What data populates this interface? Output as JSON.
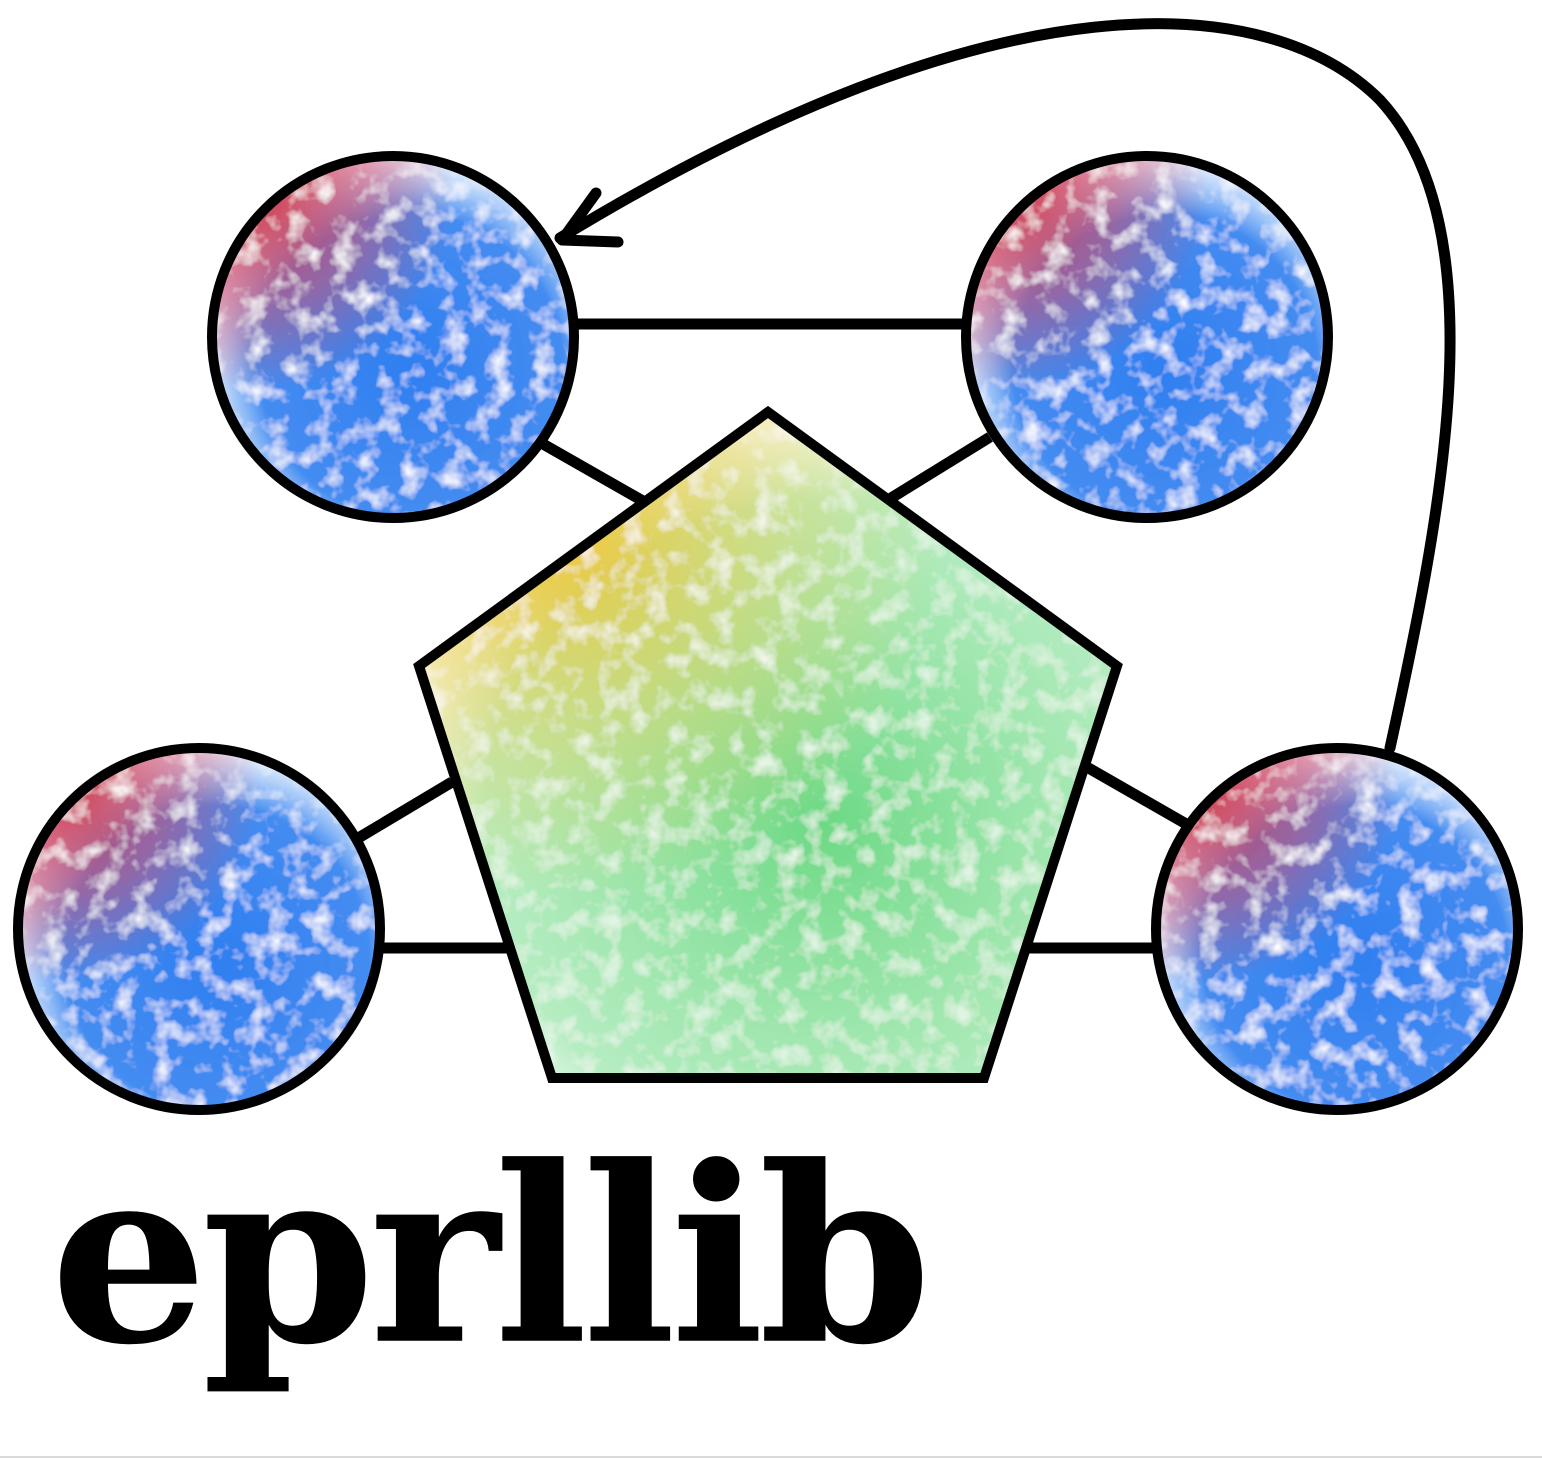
{
  "logo": {
    "wordmark": "eprllib"
  },
  "colors": {
    "stroke": "#000000",
    "background": "#ffffff",
    "agent_blue": "#2f7ff0",
    "agent_red": "#d8334f",
    "environment_green": "#3ccc5c",
    "environment_yellow": "#f2c21f"
  },
  "diagram": {
    "nodes": [
      {
        "role": "agent",
        "shape": "circle",
        "position_name": "top-left"
      },
      {
        "role": "agent",
        "shape": "circle",
        "position_name": "top-right"
      },
      {
        "role": "agent",
        "shape": "circle",
        "position_name": "bottom-left"
      },
      {
        "role": "agent",
        "shape": "circle",
        "position_name": "bottom-right"
      },
      {
        "role": "environment",
        "shape": "pentagon",
        "position_name": "center"
      }
    ],
    "edges": [
      {
        "from": "top-left",
        "to": "top-right",
        "type": "line"
      },
      {
        "from": "top-left",
        "to": "center",
        "type": "line"
      },
      {
        "from": "top-right",
        "to": "center",
        "type": "line"
      },
      {
        "from": "bottom-left",
        "to": "center",
        "type": "line"
      },
      {
        "from": "bottom-right",
        "to": "center",
        "type": "line"
      },
      {
        "from": "bottom-right",
        "to": "top-left",
        "type": "arrow"
      }
    ]
  }
}
